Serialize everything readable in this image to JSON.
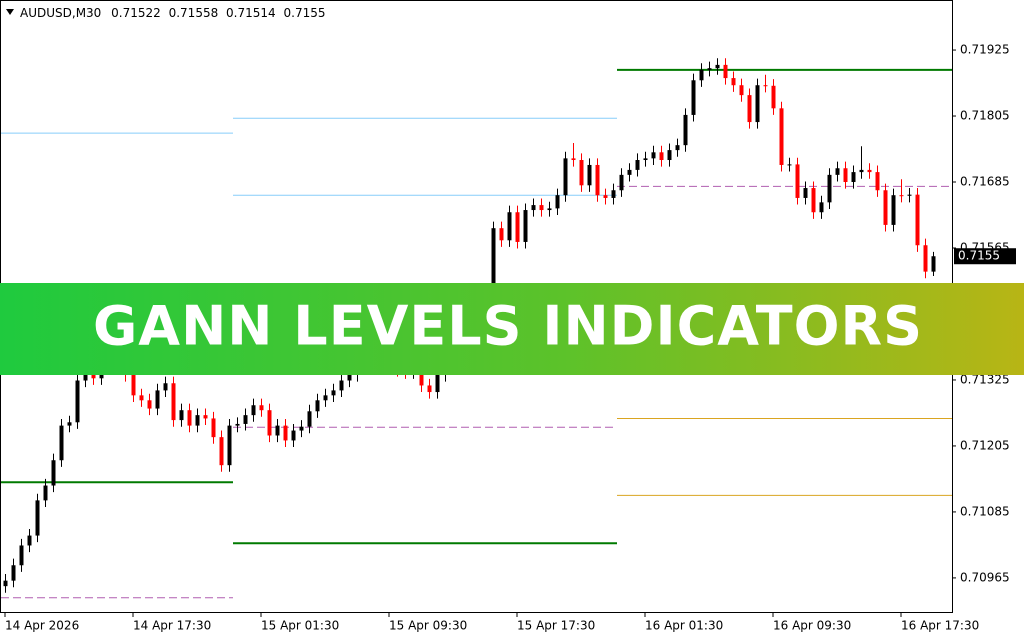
{
  "chart_data": {
    "type": "candlestick",
    "symbol": "AUDUSD,M30",
    "banner": "GANN LEVELS INDICATORS",
    "up_color": "#000000",
    "down_color": "#ff0000",
    "categories": [
      "14 Apr 2026",
      null,
      null,
      null,
      null,
      null,
      null,
      null,
      null,
      null,
      null,
      null,
      null,
      null,
      null,
      null,
      "14 Apr 17:30",
      null,
      null,
      null,
      null,
      null,
      null,
      null,
      null,
      null,
      null,
      null,
      null,
      null,
      null,
      null,
      "15 Apr 01:30",
      null,
      null,
      null,
      null,
      null,
      null,
      null,
      null,
      null,
      null,
      null,
      null,
      null,
      null,
      null,
      "15 Apr 09:30",
      null,
      null,
      null,
      null,
      null,
      null,
      null,
      null,
      null,
      null,
      null,
      null,
      null,
      null,
      null,
      "15 Apr 17:30",
      null,
      null,
      null,
      null,
      null,
      null,
      null,
      null,
      null,
      null,
      null,
      null,
      null,
      null,
      null,
      "16 Apr 01:30",
      null,
      null,
      null,
      null,
      null,
      null,
      null,
      null,
      null,
      null,
      null,
      null,
      null,
      null,
      null,
      "16 Apr 09:30",
      null,
      null,
      null,
      null,
      null,
      null,
      null,
      null,
      null,
      null,
      null,
      null,
      null,
      null,
      null,
      "16 Apr 17:30",
      null,
      null,
      null,
      null
    ],
    "open": [
      0.7095,
      0.7096,
      0.70988,
      0.71024,
      0.71042,
      0.71106,
      0.71133,
      0.71179,
      0.71242,
      0.71248,
      0.71324,
      0.71352,
      0.71328,
      0.71361,
      0.71379,
      0.71361,
      0.71334,
      0.71297,
      0.71288,
      0.71273,
      0.71306,
      0.71319,
      0.71252,
      0.7127,
      0.71242,
      0.71261,
      0.71255,
      0.71221,
      0.7117,
      0.71242,
      0.71245,
      0.71261,
      0.71279,
      0.7127,
      0.71224,
      0.71242,
      0.71215,
      0.71233,
      0.7124,
      0.71268,
      0.71288,
      0.71297,
      0.71306,
      0.71324,
      0.71334,
      0.71352,
      0.71361,
      0.7137,
      0.7136,
      0.7135,
      0.71343,
      0.71339,
      0.71346,
      0.71315,
      0.71303,
      0.71334,
      0.71352,
      0.71361,
      0.71379,
      0.71406,
      0.71434,
      0.7147,
      0.71601,
      0.71579,
      0.7163,
      0.71576,
      0.71634,
      0.71643,
      0.71634,
      0.71637,
      0.71661,
      0.71728,
      0.71725,
      0.71679,
      0.71716,
      0.71661,
      0.71656,
      0.7167,
      0.71698,
      0.71707,
      0.71725,
      0.71728,
      0.71739,
      0.71725,
      0.71743,
      0.71752,
      0.71807,
      0.7187,
      0.71889,
      0.71892,
      0.71898,
      0.71874,
      0.71861,
      0.71843,
      0.71794,
      0.71861,
      0.7186,
      0.71819,
      0.71716,
      0.71717,
      0.71656,
      0.71674,
      0.7163,
      0.71648,
      0.71698,
      0.7171,
      0.71685,
      0.71703,
      0.71707,
      0.71703,
      0.7167,
      0.71607,
      0.71661,
      0.7166,
      0.71662,
      0.7157,
      0.71522
    ],
    "high": [
      0.70972,
      0.71,
      0.71036,
      0.71054,
      0.71118,
      0.71145,
      0.71191,
      0.71254,
      0.7126,
      0.71336,
      0.71364,
      0.71364,
      0.71373,
      0.71391,
      0.71391,
      0.71373,
      0.71346,
      0.71309,
      0.713,
      0.71318,
      0.71331,
      0.71331,
      0.71282,
      0.71282,
      0.71273,
      0.71273,
      0.71267,
      0.71233,
      0.71254,
      0.71257,
      0.71273,
      0.71291,
      0.71291,
      0.71282,
      0.71254,
      0.71254,
      0.71245,
      0.71252,
      0.7128,
      0.713,
      0.71309,
      0.71318,
      0.71336,
      0.71346,
      0.71364,
      0.71373,
      0.71382,
      0.71382,
      0.71372,
      0.71362,
      0.71355,
      0.71358,
      0.71358,
      0.71327,
      0.71346,
      0.71364,
      0.71373,
      0.71391,
      0.71418,
      0.71446,
      0.71482,
      0.71613,
      0.71613,
      0.71642,
      0.71642,
      0.71646,
      0.71655,
      0.71655,
      0.71649,
      0.71673,
      0.7174,
      0.71756,
      0.71737,
      0.71728,
      0.71728,
      0.71673,
      0.71682,
      0.7171,
      0.71719,
      0.71737,
      0.7174,
      0.71751,
      0.71751,
      0.71755,
      0.71764,
      0.71819,
      0.71882,
      0.71901,
      0.71904,
      0.7191,
      0.7191,
      0.71886,
      0.71873,
      0.71855,
      0.71873,
      0.7188,
      0.71872,
      0.71831,
      0.71729,
      0.71729,
      0.71686,
      0.71686,
      0.7166,
      0.7171,
      0.71722,
      0.71722,
      0.71715,
      0.7175,
      0.71719,
      0.71715,
      0.71682,
      0.71673,
      0.7169,
      0.71674,
      0.71674,
      0.71582,
      0.71558
    ],
    "low": [
      0.70938,
      0.70948,
      0.70976,
      0.71012,
      0.7103,
      0.71094,
      0.71121,
      0.71167,
      0.7123,
      0.71236,
      0.71312,
      0.71316,
      0.71316,
      0.71349,
      0.71349,
      0.71322,
      0.71285,
      0.71276,
      0.71261,
      0.71261,
      0.71294,
      0.7124,
      0.7124,
      0.7123,
      0.7123,
      0.71243,
      0.71209,
      0.71158,
      0.71158,
      0.7123,
      0.71233,
      0.71249,
      0.71258,
      0.71212,
      0.71212,
      0.71203,
      0.71203,
      0.71221,
      0.71228,
      0.71256,
      0.71276,
      0.71285,
      0.71294,
      0.71312,
      0.71322,
      0.7134,
      0.71349,
      0.71348,
      0.71338,
      0.71331,
      0.71327,
      0.71327,
      0.71303,
      0.71291,
      0.71291,
      0.71322,
      0.7134,
      0.71349,
      0.71367,
      0.71394,
      0.71422,
      0.71458,
      0.71567,
      0.71567,
      0.71564,
      0.71564,
      0.71622,
      0.71622,
      0.71622,
      0.71625,
      0.71649,
      0.71713,
      0.71667,
      0.71667,
      0.71649,
      0.71644,
      0.71644,
      0.71658,
      0.71686,
      0.71695,
      0.71713,
      0.71716,
      0.71713,
      0.71713,
      0.71731,
      0.7174,
      0.71795,
      0.71858,
      0.71877,
      0.7188,
      0.71862,
      0.71849,
      0.71831,
      0.71782,
      0.71782,
      0.71848,
      0.71807,
      0.71704,
      0.71704,
      0.71644,
      0.71644,
      0.71618,
      0.71618,
      0.71636,
      0.71686,
      0.71673,
      0.71673,
      0.71691,
      0.71691,
      0.71658,
      0.71595,
      0.71595,
      0.71648,
      0.71648,
      0.71558,
      0.7151,
      0.71514
    ],
    "close": [
      0.7096,
      0.70988,
      0.71024,
      0.71042,
      0.71106,
      0.71133,
      0.71179,
      0.71242,
      0.71248,
      0.71324,
      0.71352,
      0.71328,
      0.71361,
      0.71379,
      0.71361,
      0.71334,
      0.71297,
      0.71288,
      0.71273,
      0.71306,
      0.71319,
      0.71252,
      0.7127,
      0.71242,
      0.71261,
      0.71255,
      0.71221,
      0.7117,
      0.71242,
      0.71245,
      0.71261,
      0.71279,
      0.7127,
      0.71224,
      0.71242,
      0.71215,
      0.71233,
      0.7124,
      0.71268,
      0.71288,
      0.71297,
      0.71306,
      0.71324,
      0.71334,
      0.71352,
      0.71361,
      0.7137,
      0.7136,
      0.7135,
      0.71343,
      0.71339,
      0.71346,
      0.71315,
      0.71303,
      0.71334,
      0.71352,
      0.71361,
      0.71379,
      0.71406,
      0.71434,
      0.7147,
      0.71601,
      0.71579,
      0.7163,
      0.71576,
      0.71634,
      0.71643,
      0.71634,
      0.71637,
      0.71661,
      0.71728,
      0.71725,
      0.71679,
      0.71716,
      0.71661,
      0.71656,
      0.7167,
      0.71698,
      0.71707,
      0.71725,
      0.71728,
      0.71739,
      0.71725,
      0.71743,
      0.71752,
      0.71807,
      0.7187,
      0.71889,
      0.71892,
      0.71898,
      0.71874,
      0.71861,
      0.71843,
      0.71794,
      0.71861,
      0.7186,
      0.71819,
      0.71716,
      0.71717,
      0.71656,
      0.71674,
      0.7163,
      0.71648,
      0.71698,
      0.7171,
      0.71685,
      0.71703,
      0.71707,
      0.71703,
      0.7167,
      0.71607,
      0.71661,
      0.7166,
      0.71662,
      0.7157,
      0.71522,
      0.7155
    ],
    "levels": [
      {
        "value": 0.71774,
        "color": "#87cefa",
        "width": 1,
        "dashed": false,
        "start": 0,
        "end": 28
      },
      {
        "value": 0.71139,
        "color": "#007a00",
        "width": 2,
        "dashed": false,
        "start": 0,
        "end": 28
      },
      {
        "value": 0.70929,
        "color": "#b05fb0",
        "width": 1,
        "dashed": true,
        "start": 0,
        "end": 28
      },
      {
        "value": 0.71801,
        "color": "#87cefa",
        "width": 1,
        "dashed": false,
        "start": 29,
        "end": 76
      },
      {
        "value": 0.71661,
        "color": "#87cefa",
        "width": 1,
        "dashed": false,
        "start": 29,
        "end": 76
      },
      {
        "value": 0.71239,
        "color": "#b05fb0",
        "width": 1,
        "dashed": true,
        "start": 29,
        "end": 76
      },
      {
        "value": 0.71028,
        "color": "#007a00",
        "width": 2,
        "dashed": false,
        "start": 29,
        "end": 76
      },
      {
        "value": 0.71889,
        "color": "#007a00",
        "width": 2,
        "dashed": false,
        "start": 77,
        "end": 118
      },
      {
        "value": 0.71677,
        "color": "#b05fb0",
        "width": 1,
        "dashed": true,
        "start": 77,
        "end": 118
      },
      {
        "value": 0.71255,
        "color": "#daa520",
        "width": 1,
        "dashed": false,
        "start": 77,
        "end": 118
      },
      {
        "value": 0.71115,
        "color": "#daa520",
        "width": 1,
        "dashed": false,
        "start": 77,
        "end": 118
      }
    ],
    "ylim": [
      0.70903,
      0.72016
    ],
    "yticks": [
      0.71925,
      0.71805,
      0.71685,
      0.71565,
      0.71445,
      0.71325,
      0.71205,
      0.71085,
      0.70965
    ]
  }
}
